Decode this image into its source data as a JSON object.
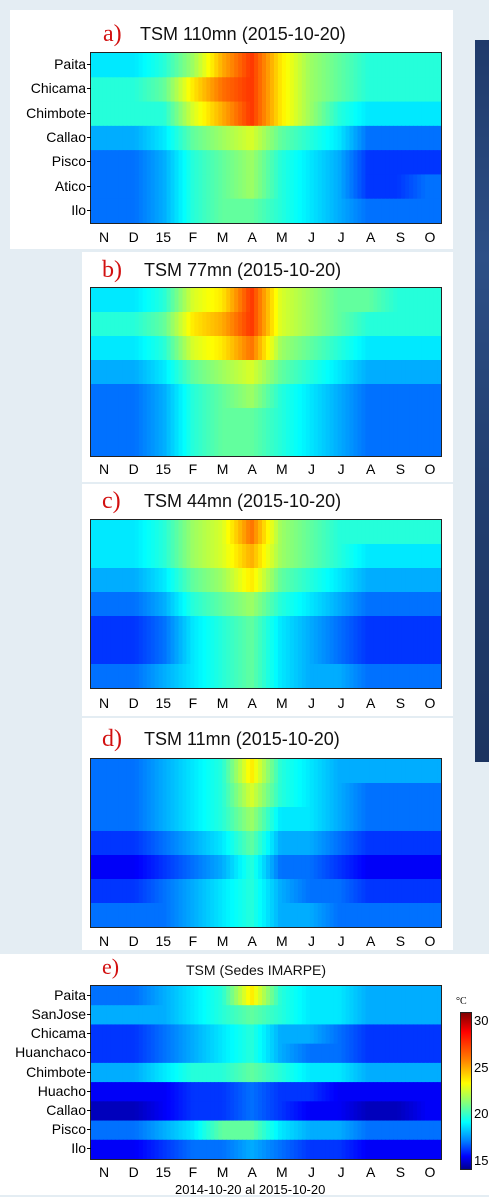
{
  "month_ticks": [
    "N",
    "D",
    "15",
    "F",
    "M",
    "A",
    "M",
    "J",
    "J",
    "A",
    "S",
    "O"
  ],
  "panels": [
    {
      "letter": "a)",
      "title": "TSM 110mn (2015-10-20)",
      "rows": [
        "Paita",
        "Chicama",
        "Chimbote",
        "Callao",
        "Pisco",
        "Atico",
        "Ilo"
      ]
    },
    {
      "letter": "b)",
      "title": "TSM 77mn (2015-10-20)",
      "rows": []
    },
    {
      "letter": "c)",
      "title": "TSM 44mn (2015-10-20)",
      "rows": []
    },
    {
      "letter": "d)",
      "title": "TSM 11mn (2015-10-20)",
      "rows": []
    },
    {
      "letter": "e)",
      "title": "TSM (Sedes IMARPE)",
      "rows": [
        "Paita",
        "SanJose",
        "Chicama",
        "Huanchaco",
        "Chimbote",
        "Huacho",
        "Callao",
        "Pisco",
        "Ilo"
      ]
    }
  ],
  "xlabel": "2014-10-20 al 2015-10-20",
  "colorbar": {
    "unit": "°C",
    "labels": [
      "30",
      "25",
      "20",
      "15"
    ],
    "colormap": "jet"
  },
  "chart_data": [
    {
      "type": "heatmap",
      "title": "TSM 110mn (2015-10-20)",
      "categories_x": [
        "N",
        "D",
        "15",
        "F",
        "M",
        "A",
        "M",
        "J",
        "J",
        "A",
        "S",
        "O"
      ],
      "categories_y": [
        "Paita",
        "Chicama",
        "Chimbote",
        "Callao",
        "Pisco",
        "Atico",
        "Ilo"
      ],
      "values": [
        [
          20,
          20,
          21,
          23,
          26,
          28,
          25,
          23,
          22,
          21,
          21,
          21
        ],
        [
          21,
          21,
          22,
          25,
          27,
          28,
          25,
          23,
          22,
          21,
          21,
          21
        ],
        [
          21,
          21,
          21,
          24,
          26,
          28,
          25,
          23,
          21,
          20,
          20,
          20
        ],
        [
          19,
          19,
          20,
          22,
          23,
          24,
          22,
          21,
          20,
          18,
          18,
          18
        ],
        [
          18,
          18,
          19,
          21,
          22,
          23,
          21,
          20,
          19,
          17,
          17,
          17
        ],
        [
          18,
          18,
          19,
          21,
          22,
          23,
          21,
          20,
          19,
          17,
          17,
          18
        ],
        [
          18,
          18,
          19,
          21,
          22,
          22,
          21,
          20,
          19,
          18,
          18,
          18
        ]
      ],
      "zlim": [
        14,
        31
      ],
      "colormap": "jet"
    },
    {
      "type": "heatmap",
      "title": "TSM 77mn (2015-10-20)",
      "categories_x": [
        "N",
        "D",
        "15",
        "F",
        "M",
        "A",
        "M",
        "J",
        "J",
        "A",
        "S",
        "O"
      ],
      "values": [
        [
          20,
          20,
          21,
          24,
          25,
          28,
          24,
          23,
          22,
          22,
          21,
          21
        ],
        [
          21,
          21,
          22,
          25,
          26,
          28,
          24,
          23,
          22,
          21,
          21,
          21
        ],
        [
          20,
          20,
          21,
          24,
          25,
          27,
          23,
          22,
          21,
          20,
          20,
          20
        ],
        [
          19,
          19,
          20,
          22,
          23,
          24,
          22,
          21,
          20,
          19,
          19,
          19
        ],
        [
          18,
          18,
          19,
          21,
          22,
          23,
          21,
          20,
          19,
          18,
          18,
          18
        ],
        [
          18,
          18,
          19,
          21,
          22,
          22,
          21,
          20,
          19,
          18,
          18,
          18
        ],
        [
          18,
          18,
          19,
          21,
          22,
          22,
          21,
          20,
          19,
          18,
          18,
          18
        ]
      ],
      "zlim": [
        14,
        31
      ],
      "colormap": "jet"
    },
    {
      "type": "heatmap",
      "title": "TSM 44mn (2015-10-20)",
      "categories_x": [
        "N",
        "D",
        "15",
        "F",
        "M",
        "A",
        "M",
        "J",
        "J",
        "A",
        "S",
        "O"
      ],
      "values": [
        [
          20,
          20,
          21,
          23,
          24,
          27,
          23,
          22,
          21,
          21,
          21,
          21
        ],
        [
          20,
          20,
          21,
          23,
          24,
          26,
          23,
          22,
          21,
          20,
          20,
          20
        ],
        [
          19,
          19,
          20,
          22,
          23,
          25,
          22,
          21,
          20,
          19,
          19,
          19
        ],
        [
          18,
          18,
          19,
          21,
          22,
          23,
          21,
          20,
          19,
          18,
          18,
          18
        ],
        [
          17,
          17,
          18,
          20,
          21,
          22,
          20,
          19,
          18,
          17,
          17,
          17
        ],
        [
          17,
          17,
          18,
          20,
          21,
          22,
          20,
          19,
          18,
          17,
          17,
          17
        ],
        [
          18,
          18,
          19,
          20,
          21,
          22,
          20,
          19,
          19,
          18,
          18,
          18
        ]
      ],
      "zlim": [
        14,
        31
      ],
      "colormap": "jet"
    },
    {
      "type": "heatmap",
      "title": "TSM 11mn (2015-10-20)",
      "categories_x": [
        "N",
        "D",
        "15",
        "F",
        "M",
        "A",
        "M",
        "J",
        "J",
        "A",
        "S",
        "O"
      ],
      "values": [
        [
          18,
          18,
          19,
          20,
          21,
          25,
          21,
          20,
          19,
          19,
          19,
          19
        ],
        [
          18,
          18,
          19,
          20,
          21,
          24,
          21,
          20,
          19,
          18,
          18,
          18
        ],
        [
          18,
          18,
          19,
          20,
          21,
          23,
          20,
          20,
          19,
          18,
          18,
          18
        ],
        [
          17,
          17,
          18,
          19,
          20,
          22,
          19,
          19,
          18,
          17,
          17,
          17
        ],
        [
          16,
          16,
          17,
          18,
          19,
          21,
          18,
          18,
          17,
          16,
          16,
          16
        ],
        [
          17,
          17,
          18,
          19,
          20,
          21,
          19,
          18,
          18,
          17,
          17,
          17
        ],
        [
          18,
          18,
          18,
          19,
          20,
          21,
          19,
          19,
          18,
          18,
          18,
          18
        ]
      ],
      "zlim": [
        14,
        31
      ],
      "colormap": "jet"
    },
    {
      "type": "heatmap",
      "title": "TSM (Sedes IMARPE)",
      "xlabel": "2014-10-20 al 2015-10-20",
      "categories_x": [
        "N",
        "D",
        "15",
        "F",
        "M",
        "A",
        "M",
        "J",
        "J",
        "A",
        "S",
        "O"
      ],
      "categories_y": [
        "Paita",
        "SanJose",
        "Chicama",
        "Huanchaco",
        "Chimbote",
        "Huacho",
        "Callao",
        "Pisco",
        "Ilo"
      ],
      "values": [
        [
          18,
          18,
          19,
          20,
          21,
          25,
          21,
          20,
          20,
          19,
          19,
          19
        ],
        [
          19,
          19,
          19,
          20,
          21,
          22,
          21,
          20,
          20,
          19,
          19,
          19
        ],
        [
          17,
          17,
          18,
          19,
          20,
          21,
          19,
          19,
          18,
          17,
          17,
          17
        ],
        [
          17,
          17,
          18,
          19,
          20,
          21,
          19,
          18,
          18,
          17,
          17,
          17
        ],
        [
          19,
          19,
          20,
          21,
          21,
          22,
          21,
          20,
          20,
          19,
          19,
          19
        ],
        [
          16,
          16,
          16,
          17,
          17,
          18,
          17,
          17,
          16,
          16,
          16,
          16
        ],
        [
          15,
          15,
          16,
          17,
          17,
          18,
          17,
          16,
          16,
          15,
          15,
          16
        ],
        [
          18,
          18,
          19,
          20,
          22,
          22,
          20,
          19,
          19,
          18,
          18,
          18
        ],
        [
          16,
          16,
          17,
          18,
          18,
          19,
          18,
          17,
          17,
          16,
          16,
          16
        ]
      ],
      "zlim": [
        14,
        31
      ],
      "colormap": "jet",
      "colorbar_ticks": [
        15,
        20,
        25,
        30
      ],
      "colorbar_unit": "°C"
    }
  ]
}
